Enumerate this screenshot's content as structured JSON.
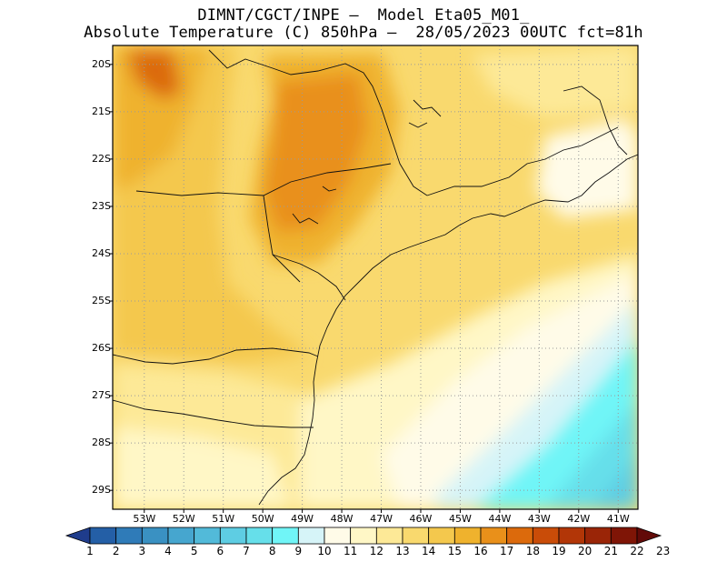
{
  "title": {
    "line1": "DIMNT/CGCT/INPE –  Model Eta05_M01_",
    "line2": "Absolute Temperature (C) 850hPa –  28/05/2023 00UTC fct=81h"
  },
  "map": {
    "lat_ticks": [
      "20S",
      "21S",
      "22S",
      "23S",
      "24S",
      "25S",
      "26S",
      "27S",
      "28S",
      "29S"
    ],
    "lon_ticks": [
      "53W",
      "52W",
      "51W",
      "50W",
      "49W",
      "48W",
      "47W",
      "46W",
      "45W",
      "44W",
      "43W",
      "42W",
      "41W"
    ],
    "extent": {
      "west": -53.8,
      "east": -40.5,
      "north": -19.6,
      "south": -29.4
    },
    "grid": "dotted"
  },
  "colorbar": {
    "labels": [
      "1",
      "2",
      "3",
      "4",
      "5",
      "6",
      "7",
      "8",
      "9",
      "10",
      "11",
      "12",
      "13",
      "14",
      "15",
      "16",
      "17",
      "18",
      "19",
      "20",
      "21",
      "22",
      "23"
    ],
    "colors": [
      "#1f3c8c",
      "#245fa6",
      "#2f7bb8",
      "#3a91c2",
      "#46a6cf",
      "#52bad9",
      "#5ecde3",
      "#66dfea",
      "#70f5f7",
      "#d6f4f8",
      "#fffbe8",
      "#fff7c6",
      "#fde997",
      "#f9d96e",
      "#f4c84d",
      "#efb22d",
      "#e9901a",
      "#dc6a0c",
      "#c94c08",
      "#b23607",
      "#9a2507",
      "#7f1506",
      "#620a08"
    ]
  }
}
